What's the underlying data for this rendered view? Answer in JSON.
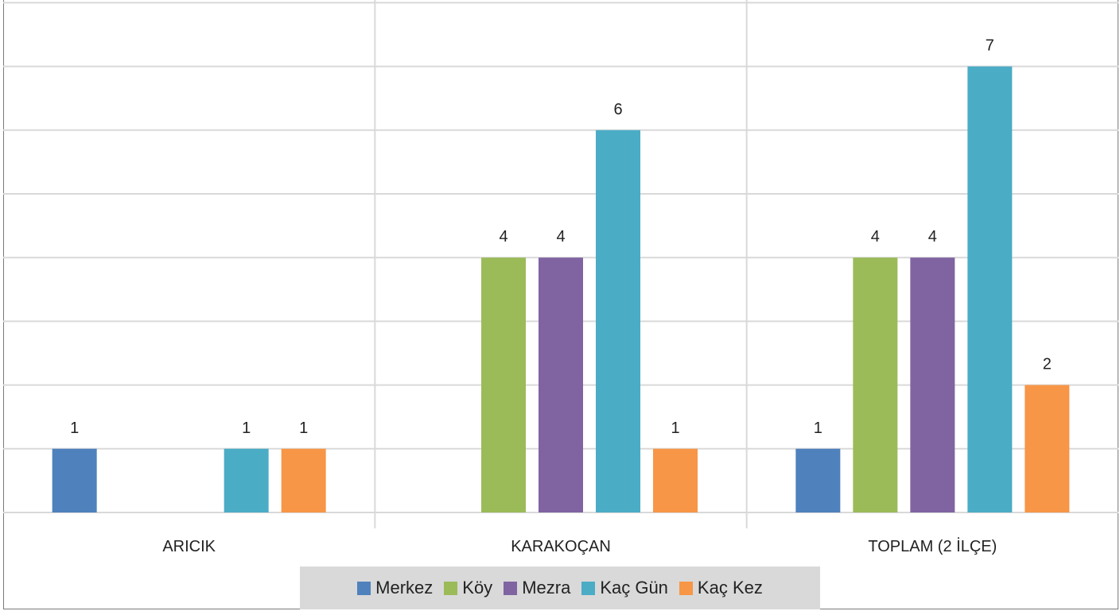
{
  "chart_data": {
    "type": "bar",
    "categories": [
      "ARICIK",
      "KARAKOÇAN",
      "TOPLAM (2 İLÇE)"
    ],
    "series": [
      {
        "name": "Merkez",
        "values": [
          1,
          0,
          1
        ],
        "color": "#4f81bd"
      },
      {
        "name": "Köy",
        "values": [
          0,
          4,
          4
        ],
        "color": "#9bbb59"
      },
      {
        "name": "Mezra",
        "values": [
          0,
          4,
          4
        ],
        "color": "#8064a2"
      },
      {
        "name": "Kaç Gün",
        "values": [
          1,
          6,
          7
        ],
        "color": "#4bacc6"
      },
      {
        "name": "Kaç Kez",
        "values": [
          1,
          1,
          2
        ],
        "color": "#f79646"
      }
    ],
    "ylim": [
      0,
      8
    ],
    "grid": true,
    "legend_position": "bottom"
  }
}
